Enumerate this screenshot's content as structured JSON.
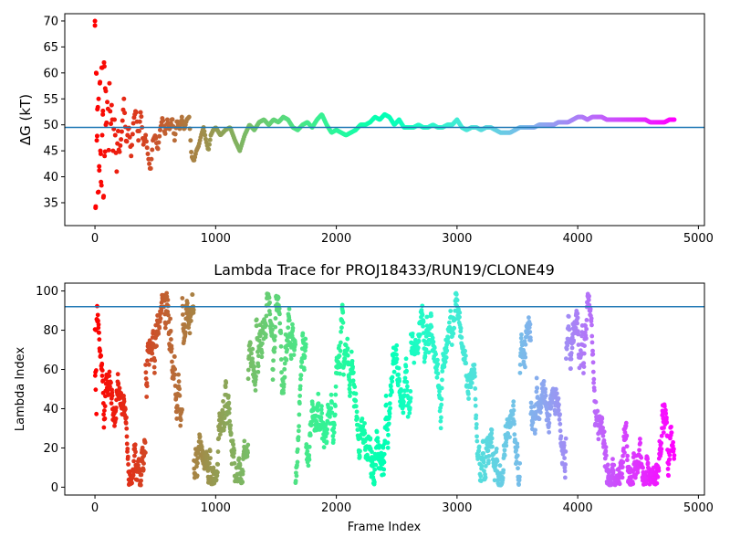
{
  "chart_data": [
    {
      "type": "scatter",
      "title": "",
      "xlabel": "",
      "ylabel": "ΔG (kT)",
      "xlim": [
        -250,
        5050
      ],
      "ylim": [
        30.6,
        71.4
      ],
      "xticks": [
        0,
        1000,
        2000,
        3000,
        4000,
        5000
      ],
      "yticks": [
        35,
        40,
        45,
        50,
        55,
        60,
        65,
        70
      ],
      "colormap": "rainbow (reversed: red at frame 0, purple at last frame)",
      "hline": 49.5,
      "hline_color": "#1f77b4",
      "trace": [
        [
          0,
          70
        ],
        [
          5,
          34
        ],
        [
          10,
          60
        ],
        [
          15,
          47
        ],
        [
          20,
          53
        ],
        [
          25,
          37
        ],
        [
          30,
          55
        ],
        [
          35,
          42
        ],
        [
          40,
          58
        ],
        [
          45,
          45
        ],
        [
          50,
          39
        ],
        [
          55,
          61
        ],
        [
          60,
          48
        ],
        [
          65,
          52
        ],
        [
          70,
          36
        ],
        [
          75,
          62
        ],
        [
          80,
          44
        ],
        [
          85,
          57
        ],
        [
          90,
          50
        ],
        [
          100,
          54
        ],
        [
          110,
          46
        ],
        [
          120,
          58
        ],
        [
          130,
          49
        ],
        [
          140,
          55
        ],
        [
          150,
          45
        ],
        [
          160,
          52
        ],
        [
          170,
          47
        ],
        [
          180,
          41
        ],
        [
          190,
          50
        ],
        [
          200,
          44
        ],
        [
          220,
          48
        ],
        [
          240,
          55
        ],
        [
          260,
          46
        ],
        [
          280,
          50
        ],
        [
          300,
          44
        ],
        [
          320,
          51
        ],
        [
          340,
          53
        ],
        [
          360,
          47
        ],
        [
          380,
          53
        ],
        [
          400,
          46
        ],
        [
          420,
          48
        ],
        [
          440,
          44
        ],
        [
          460,
          41
        ],
        [
          480,
          47
        ],
        [
          500,
          48
        ],
        [
          520,
          45
        ],
        [
          540,
          49
        ],
        [
          560,
          51.5
        ],
        [
          580,
          48
        ],
        [
          600,
          51
        ],
        [
          620,
          49
        ],
        [
          640,
          51.5
        ],
        [
          660,
          47
        ],
        [
          680,
          51
        ],
        [
          700,
          49
        ],
        [
          720,
          51.5
        ],
        [
          740,
          49
        ],
        [
          760,
          51
        ],
        [
          780,
          51.5
        ],
        [
          800,
          44
        ],
        [
          820,
          43
        ],
        [
          840,
          45
        ],
        [
          860,
          46
        ],
        [
          880,
          48
        ],
        [
          900,
          49.5
        ],
        [
          920,
          47
        ],
        [
          940,
          45
        ],
        [
          960,
          48
        ],
        [
          980,
          49
        ],
        [
          1000,
          49.5
        ],
        [
          1040,
          48
        ],
        [
          1080,
          49
        ],
        [
          1120,
          49.5
        ],
        [
          1160,
          47
        ],
        [
          1200,
          45
        ],
        [
          1240,
          48
        ],
        [
          1280,
          50
        ],
        [
          1320,
          49
        ],
        [
          1360,
          50.5
        ],
        [
          1400,
          51
        ],
        [
          1440,
          50
        ],
        [
          1480,
          51
        ],
        [
          1520,
          50.5
        ],
        [
          1560,
          51.5
        ],
        [
          1600,
          51
        ],
        [
          1640,
          49.5
        ],
        [
          1680,
          49
        ],
        [
          1720,
          50
        ],
        [
          1760,
          50.5
        ],
        [
          1800,
          49.5
        ],
        [
          1840,
          51
        ],
        [
          1880,
          52
        ],
        [
          1920,
          50
        ],
        [
          1960,
          48.5
        ],
        [
          2000,
          49
        ],
        [
          2040,
          48.5
        ],
        [
          2080,
          48
        ],
        [
          2120,
          48.5
        ],
        [
          2160,
          49
        ],
        [
          2200,
          50
        ],
        [
          2240,
          50
        ],
        [
          2280,
          50.5
        ],
        [
          2320,
          51.5
        ],
        [
          2360,
          51
        ],
        [
          2400,
          52
        ],
        [
          2440,
          51.5
        ],
        [
          2480,
          50
        ],
        [
          2520,
          51
        ],
        [
          2560,
          49.5
        ],
        [
          2600,
          49.5
        ],
        [
          2640,
          49.5
        ],
        [
          2680,
          50
        ],
        [
          2720,
          49.5
        ],
        [
          2760,
          49.5
        ],
        [
          2800,
          50
        ],
        [
          2840,
          49.5
        ],
        [
          2880,
          49.5
        ],
        [
          2920,
          50
        ],
        [
          2960,
          50
        ],
        [
          3000,
          51
        ],
        [
          3040,
          49.5
        ],
        [
          3080,
          49
        ],
        [
          3120,
          49.5
        ],
        [
          3160,
          49.5
        ],
        [
          3200,
          49
        ],
        [
          3240,
          49.5
        ],
        [
          3280,
          49.5
        ],
        [
          3320,
          49
        ],
        [
          3360,
          48.5
        ],
        [
          3400,
          48.5
        ],
        [
          3440,
          48.5
        ],
        [
          3480,
          49
        ],
        [
          3520,
          49.5
        ],
        [
          3560,
          49.5
        ],
        [
          3600,
          49.5
        ],
        [
          3640,
          49.5
        ],
        [
          3680,
          50
        ],
        [
          3720,
          50
        ],
        [
          3760,
          50
        ],
        [
          3800,
          50
        ],
        [
          3840,
          50.5
        ],
        [
          3880,
          50.5
        ],
        [
          3920,
          50.5
        ],
        [
          3960,
          51
        ],
        [
          4000,
          51.5
        ],
        [
          4040,
          51.5
        ],
        [
          4080,
          51
        ],
        [
          4120,
          51.5
        ],
        [
          4160,
          51.5
        ],
        [
          4200,
          51.5
        ],
        [
          4240,
          51
        ],
        [
          4280,
          51
        ],
        [
          4320,
          51
        ],
        [
          4360,
          51
        ],
        [
          4400,
          51
        ],
        [
          4440,
          51
        ],
        [
          4480,
          51
        ],
        [
          4520,
          51
        ],
        [
          4560,
          51
        ],
        [
          4600,
          50.5
        ],
        [
          4640,
          50.5
        ],
        [
          4680,
          50.5
        ],
        [
          4720,
          50.5
        ],
        [
          4760,
          51
        ],
        [
          4800,
          51
        ]
      ]
    },
    {
      "type": "scatter",
      "title": "Lambda Trace for PROJ18433/RUN19/CLONE49",
      "xlabel": "Frame Index",
      "ylabel": "Lambda Index",
      "xlim": [
        -250,
        5050
      ],
      "ylim": [
        -4,
        104
      ],
      "xticks": [
        0,
        1000,
        2000,
        3000,
        4000,
        5000
      ],
      "yticks": [
        0,
        20,
        40,
        60,
        80,
        100
      ],
      "colormap": "rainbow (reversed: red at frame 0, purple at last frame)",
      "hline": 92,
      "hline_color": "#1f77b4",
      "frame_range": [
        0,
        4800
      ],
      "lambda_range": [
        0,
        99
      ]
    }
  ]
}
